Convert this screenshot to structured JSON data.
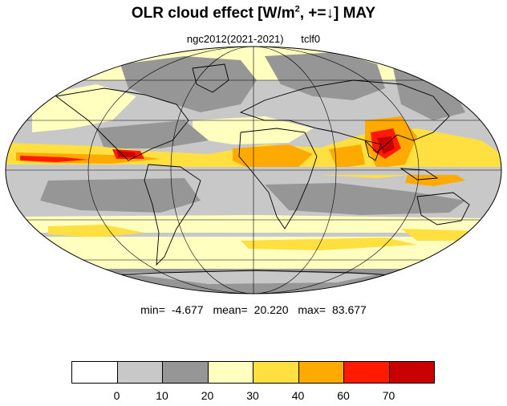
{
  "title": {
    "prefix": "OLR cloud effect [W/m",
    "superscript": "2",
    "suffix": ", +=↓]  MAY"
  },
  "subtitle": {
    "model": "ngc2012(2021-2021)",
    "variable": "tclf0"
  },
  "stats": {
    "min_label": "min=",
    "min_value": "-4.677",
    "mean_label": "mean=",
    "mean_value": "20.220",
    "max_label": "max=",
    "max_value": "83.677"
  },
  "colorbar": {
    "colors": [
      "#ffffff",
      "#c8c8c8",
      "#969696",
      "#ffffc0",
      "#ffe040",
      "#ffaa00",
      "#ff1a00",
      "#c80000"
    ],
    "tick_labels": [
      "0",
      "10",
      "20",
      "30",
      "40",
      "60",
      "70"
    ]
  },
  "map": {
    "projection": "Mollweide",
    "grid": true,
    "coastlines": true,
    "field_colors": {
      "light_gray": "#c8c8c8",
      "dark_gray": "#969696",
      "pale_yellow": "#ffffc0",
      "yellow": "#ffe040",
      "orange": "#ffaa00",
      "red": "#ff1a00",
      "dark_red": "#c80000"
    }
  }
}
